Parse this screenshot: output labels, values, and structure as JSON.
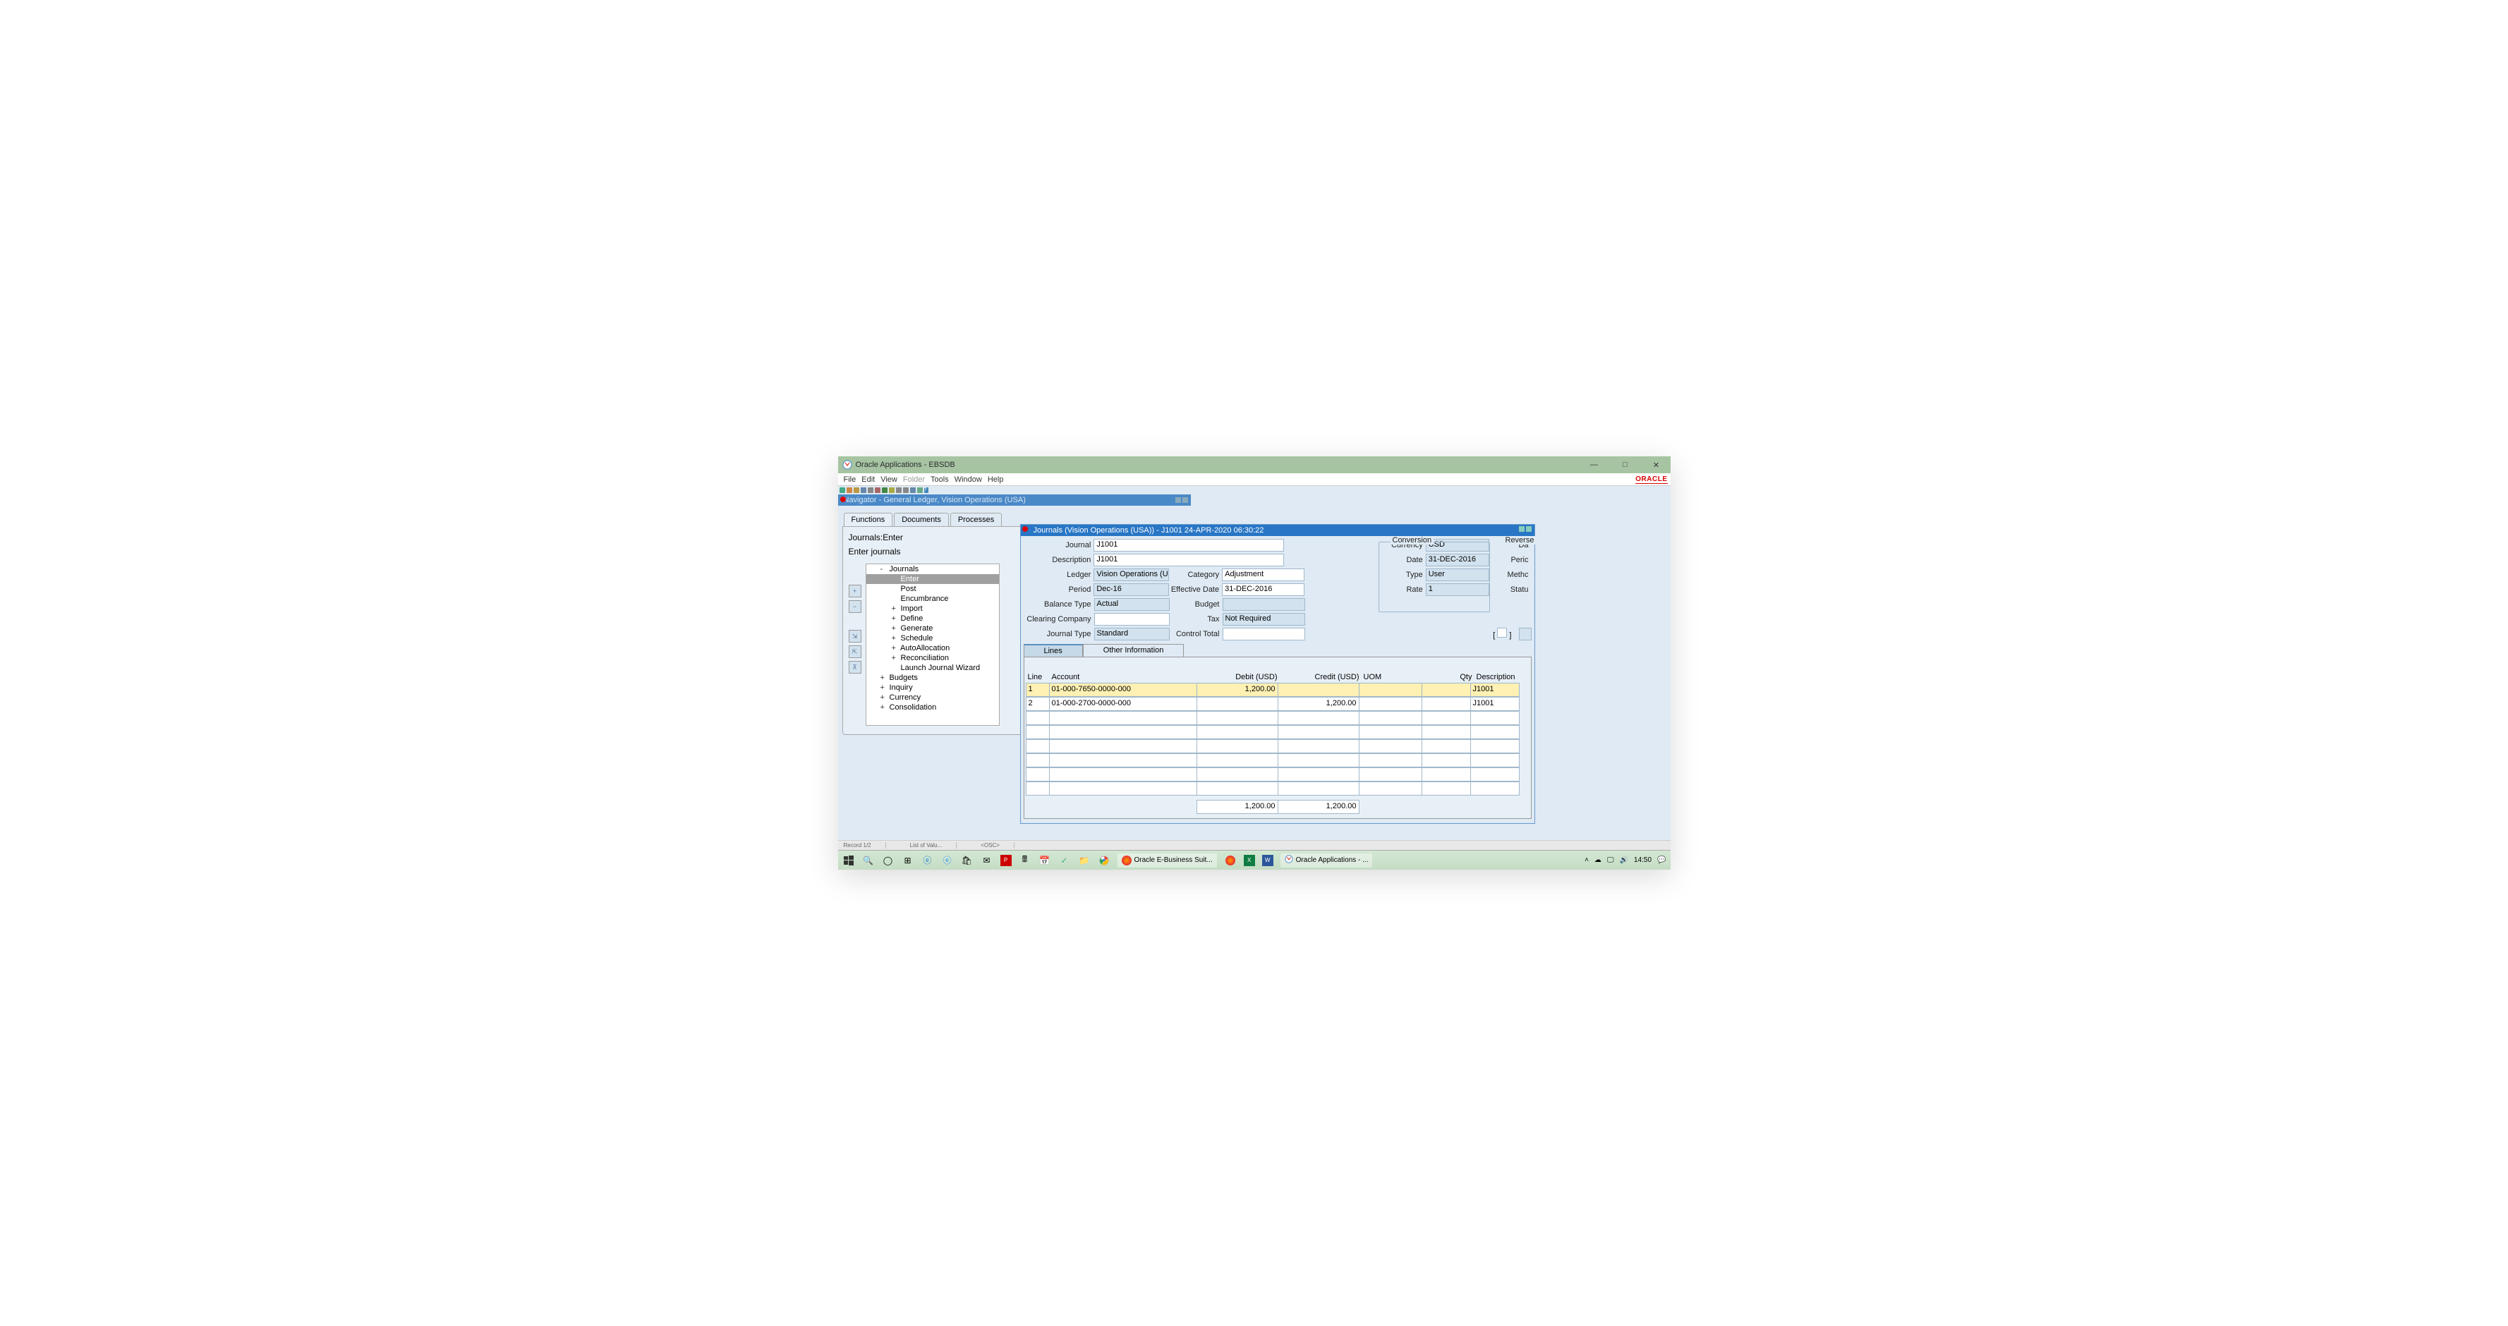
{
  "titlebar": {
    "text": "Oracle Applications - EBSDB"
  },
  "menubar": [
    "File",
    "Edit",
    "View",
    "Folder",
    "Tools",
    "Window",
    "Help"
  ],
  "navigator": {
    "title": "Navigator - General Ledger, Vision Operations (USA)",
    "tabs": [
      "Functions",
      "Documents",
      "Processes"
    ],
    "label1": "Journals:Enter",
    "label2": "Enter journals",
    "tree": [
      {
        "label": "Journals",
        "level": 1,
        "exp": "-"
      },
      {
        "label": "Enter",
        "level": 2,
        "selected": true
      },
      {
        "label": "Post",
        "level": 2
      },
      {
        "label": "Encumbrance",
        "level": 2
      },
      {
        "label": "Import",
        "level": 2,
        "exp": "+"
      },
      {
        "label": "Define",
        "level": 2,
        "exp": "+"
      },
      {
        "label": "Generate",
        "level": 2,
        "exp": "+"
      },
      {
        "label": "Schedule",
        "level": 2,
        "exp": "+"
      },
      {
        "label": "AutoAllocation",
        "level": 2,
        "exp": "+"
      },
      {
        "label": "Reconciliation",
        "level": 2,
        "exp": "+"
      },
      {
        "label": "Launch Journal Wizard",
        "level": 2
      },
      {
        "label": "Budgets",
        "level": 1,
        "exp": "+"
      },
      {
        "label": "Inquiry",
        "level": 1,
        "exp": "+"
      },
      {
        "label": "Currency",
        "level": 1,
        "exp": "+"
      },
      {
        "label": "Consolidation",
        "level": 1,
        "exp": "+"
      }
    ]
  },
  "journal": {
    "title": "Journals (Vision Operations (USA)) - J1001 24-APR-2020 06:30:22",
    "labels": {
      "journal": "Journal",
      "description": "Description",
      "ledger": "Ledger",
      "period": "Period",
      "balance_type": "Balance Type",
      "clearing_company": "Clearing Company",
      "journal_type": "Journal Type",
      "category": "Category",
      "effective_date": "Effective Date",
      "budget": "Budget",
      "tax": "Tax",
      "control_total": "Control Total",
      "conversion": "Conversion",
      "currency": "Currency",
      "date": "Date",
      "type": "Type",
      "rate": "Rate",
      "reverse": "Reverse",
      "da": "Da",
      "peric": "Peric",
      "methc": "Methc",
      "statu": "Statu"
    },
    "fields": {
      "journal": "J1001",
      "description": "J1001",
      "ledger": "Vision Operations (U",
      "period": "Dec-16",
      "balance_type": "Actual",
      "clearing_company": "",
      "journal_type": "Standard",
      "category": "Adjustment",
      "effective_date": "31-DEC-2016",
      "budget": "",
      "tax": "Not Required",
      "control_total": "",
      "currency": "USD",
      "date": "31-DEC-2016",
      "type": "User",
      "rate": "1"
    },
    "subtabs": [
      "Lines",
      "Other Information"
    ],
    "columns": {
      "line": "Line",
      "account": "Account",
      "debit": "Debit (USD)",
      "credit": "Credit (USD)",
      "uom": "UOM",
      "qty": "Qty",
      "desc": "Description"
    },
    "lines": [
      {
        "line": "1",
        "account": "01-000-7650-0000-000",
        "debit": "1,200.00",
        "credit": "",
        "uom": "",
        "qty": "",
        "desc": "J1001",
        "active": true
      },
      {
        "line": "2",
        "account": "01-000-2700-0000-000",
        "debit": "",
        "credit": "1,200.00",
        "uom": "",
        "qty": "",
        "desc": "J1001"
      },
      {
        "line": "",
        "account": "",
        "debit": "",
        "credit": "",
        "uom": "",
        "qty": "",
        "desc": ""
      },
      {
        "line": "",
        "account": "",
        "debit": "",
        "credit": "",
        "uom": "",
        "qty": "",
        "desc": ""
      },
      {
        "line": "",
        "account": "",
        "debit": "",
        "credit": "",
        "uom": "",
        "qty": "",
        "desc": ""
      },
      {
        "line": "",
        "account": "",
        "debit": "",
        "credit": "",
        "uom": "",
        "qty": "",
        "desc": ""
      },
      {
        "line": "",
        "account": "",
        "debit": "",
        "credit": "",
        "uom": "",
        "qty": "",
        "desc": ""
      },
      {
        "line": "",
        "account": "",
        "debit": "",
        "credit": "",
        "uom": "",
        "qty": "",
        "desc": ""
      }
    ],
    "totals": {
      "debit": "1,200.00",
      "credit": "1,200.00"
    }
  },
  "statusbar": {
    "record": "Record 1/2",
    "lov": "List of Valu...",
    "osc": "<OSC>"
  },
  "taskbar": {
    "items": [
      {
        "label": "Oracle E-Business Suit...",
        "color": "#e67e22"
      },
      {
        "label": "Oracle Applications - ...",
        "color": "#3c7cbf"
      }
    ],
    "time": "14:50"
  }
}
